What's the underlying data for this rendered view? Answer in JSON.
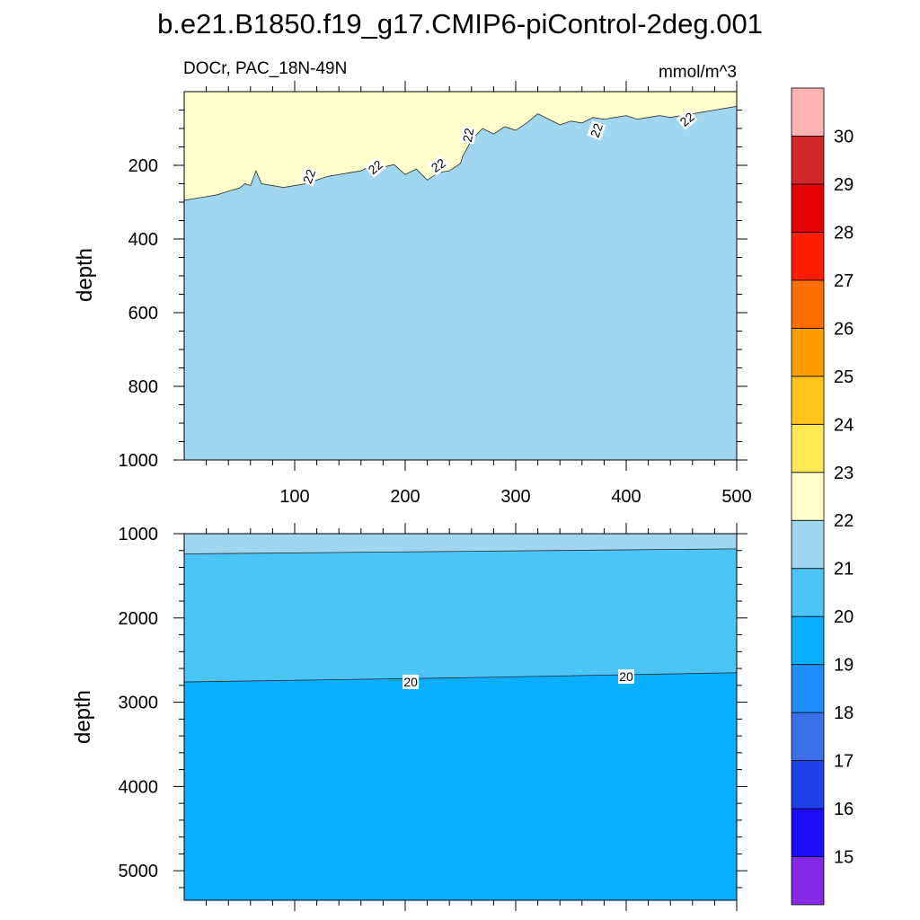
{
  "chart_data": [
    {
      "type": "contour",
      "title": "b.e21.B1850.f19_g17.CMIP6-piControl-2deg.001",
      "left_label": "DOCr, PAC_18N-49N",
      "right_label": "mmol/m^3",
      "ylabel": "depth",
      "xlabel": "",
      "xlim": [
        0,
        500
      ],
      "ylim": [
        1000,
        0
      ],
      "x_ticks": [
        100,
        200,
        300,
        400,
        500
      ],
      "y_ticks": [
        200,
        400,
        600,
        800,
        1000
      ],
      "fill_colors": {
        "below_22": "#a0d6ef",
        "above_22": "#ffffcd"
      },
      "contours": [
        {
          "level": 22,
          "x": [
            0,
            10,
            20,
            30,
            40,
            50,
            55,
            60,
            65,
            70,
            80,
            90,
            100,
            110,
            120,
            130,
            140,
            150,
            160,
            170,
            180,
            190,
            200,
            210,
            220,
            230,
            240,
            250,
            252,
            255,
            260,
            270,
            280,
            290,
            300,
            310,
            320,
            330,
            340,
            350,
            360,
            370,
            380,
            390,
            400,
            410,
            420,
            430,
            440,
            450,
            460,
            470,
            480,
            490,
            500
          ],
          "y": [
            295,
            290,
            285,
            280,
            270,
            262,
            250,
            255,
            215,
            250,
            255,
            260,
            255,
            250,
            240,
            230,
            225,
            220,
            215,
            200,
            205,
            198,
            225,
            210,
            240,
            220,
            215,
            195,
            175,
            160,
            130,
            100,
            115,
            95,
            105,
            85,
            60,
            75,
            90,
            80,
            85,
            70,
            75,
            70,
            65,
            75,
            70,
            65,
            70,
            65,
            60,
            55,
            50,
            45,
            40
          ]
        }
      ],
      "contour_labels": [
        {
          "text": "22",
          "x": 113,
          "y": 230
        },
        {
          "text": "22",
          "x": 173,
          "y": 205
        },
        {
          "text": "22",
          "x": 230,
          "y": 200
        },
        {
          "text": "22",
          "x": 257,
          "y": 118
        },
        {
          "text": "22",
          "x": 373,
          "y": 105
        },
        {
          "text": "22",
          "x": 455,
          "y": 75
        }
      ]
    },
    {
      "type": "contour",
      "ylabel": "depth",
      "xlabel": "",
      "xlim": [
        0,
        500
      ],
      "ylim": [
        5350,
        1000
      ],
      "y_ticks": [
        1000,
        2000,
        3000,
        4000,
        5000
      ],
      "fill_colors": {
        "above_21": "#a0d6ef",
        "band_20_21": "#4bc4f7",
        "below_20": "#0aaeff"
      },
      "contours": [
        {
          "level": 21,
          "x": [
            0,
            500
          ],
          "y": [
            1240,
            1180
          ]
        },
        {
          "level": 20,
          "x": [
            0,
            250,
            500
          ],
          "y": [
            2760,
            2710,
            2650
          ]
        }
      ],
      "contour_labels": [
        {
          "text": "20",
          "x": 205,
          "y": 2760
        },
        {
          "text": "20",
          "x": 400,
          "y": 2695
        }
      ]
    }
  ],
  "colorbar": {
    "colors": [
      "#8429e6",
      "#1e0cf9",
      "#2040e8",
      "#3c70e8",
      "#1e8efd",
      "#0aaeff",
      "#4bc4f7",
      "#a0d6ef",
      "#ffffcd",
      "#ffe955",
      "#ffc51c",
      "#ff9d00",
      "#ff6e00",
      "#ff1e00",
      "#e20000",
      "#d02828",
      "#ffb3b3"
    ],
    "labels": [
      "15",
      "16",
      "17",
      "18",
      "19",
      "20",
      "21",
      "22",
      "23",
      "24",
      "25",
      "26",
      "27",
      "28",
      "29",
      "30"
    ]
  }
}
